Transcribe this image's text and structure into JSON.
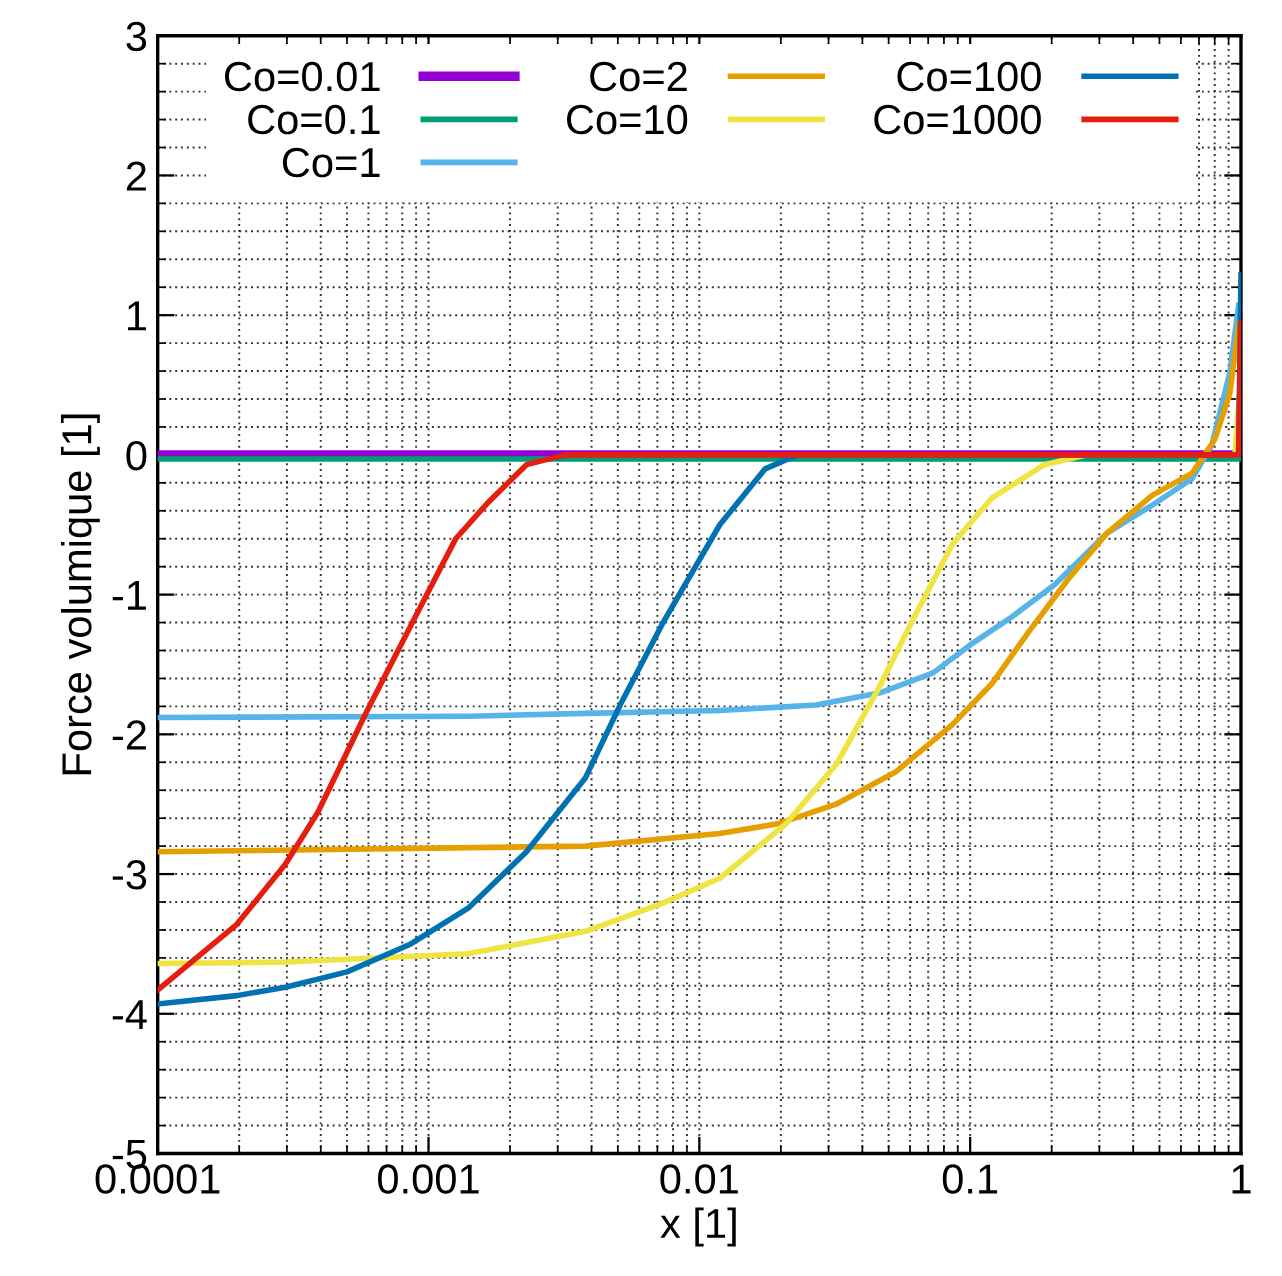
{
  "chart_data": {
    "type": "line",
    "xlabel": "x [1]",
    "ylabel": "Force volumique [1]",
    "log": "x",
    "xlim": [
      0.0001,
      1
    ],
    "ylim": [
      -5,
      3
    ],
    "xticks": [
      0.0001,
      0.001,
      0.01,
      0.1,
      1
    ],
    "yticks": [
      -5,
      -4,
      -3,
      -2,
      -1,
      0,
      1,
      2,
      3
    ],
    "grid": true,
    "legend": "top",
    "line_style": "solid",
    "marker": "none",
    "series": [
      {
        "name": "Co=0.01",
        "color": "#9400d3",
        "x": [
          0.0001,
          1
        ],
        "values": [
          0,
          0
        ]
      },
      {
        "name": "Co=0.1",
        "color": "#009e73",
        "x": [
          0.0001,
          1
        ],
        "values": [
          -0.03,
          -0.03
        ]
      },
      {
        "name": "Co=1",
        "color": "#56b4e9",
        "x": [
          0.0001,
          0.0014,
          0.0038,
          0.0119,
          0.027,
          0.047,
          0.073,
          0.1,
          0.14,
          0.205,
          0.32,
          0.47,
          0.66,
          0.78,
          0.91,
          0.98
        ],
        "values": [
          -1.88,
          -1.87,
          -1.85,
          -1.83,
          -1.79,
          -1.7,
          -1.56,
          -1.36,
          -1.17,
          -0.93,
          -0.56,
          -0.36,
          -0.17,
          0.07,
          0.59,
          1.07
        ]
      },
      {
        "name": "Co=2",
        "color": "#e69f00",
        "x": [
          0.0001,
          0.0038,
          0.0119,
          0.0195,
          0.032,
          0.053,
          0.086,
          0.12,
          0.164,
          0.23,
          0.32,
          0.47,
          0.66,
          0.8,
          0.91,
          0.98
        ],
        "values": [
          -2.84,
          -2.8,
          -2.71,
          -2.64,
          -2.5,
          -2.27,
          -1.93,
          -1.64,
          -1.27,
          -0.89,
          -0.56,
          -0.29,
          -0.13,
          0.11,
          0.44,
          0.93
        ]
      },
      {
        "name": "Co=10",
        "color": "#f0e442",
        "x": [
          0.0001,
          0.0003,
          0.0014,
          0.0038,
          0.0073,
          0.0119,
          0.0209,
          0.0322,
          0.0468,
          0.0618,
          0.086,
          0.12,
          0.188,
          0.27,
          0.95,
          1
        ],
        "values": [
          -3.64,
          -3.63,
          -3.57,
          -3.41,
          -3.21,
          -3.03,
          -2.64,
          -2.21,
          -1.64,
          -1.17,
          -0.64,
          -0.31,
          -0.07,
          0,
          0,
          0.6
        ]
      },
      {
        "name": "Co=100",
        "color": "#0072b2",
        "x": [
          0.0001,
          0.000196,
          0.000296,
          0.0005,
          0.00086,
          0.00141,
          0.0023,
          0.0038,
          0.0051,
          0.0073,
          0.0119,
          0.0175,
          0.023,
          0.98,
          1
        ],
        "values": [
          -3.93,
          -3.87,
          -3.81,
          -3.7,
          -3.5,
          -3.24,
          -2.84,
          -2.31,
          -1.79,
          -1.21,
          -0.5,
          -0.1,
          0,
          0,
          1.29
        ]
      },
      {
        "name": "Co=1000",
        "color": "#e51e10",
        "x": [
          0.0001,
          0.000196,
          0.000296,
          0.00039,
          0.00059,
          0.00091,
          0.00126,
          0.00166,
          0.0023,
          0.0032,
          0.98,
          1
        ],
        "values": [
          -3.83,
          -3.36,
          -2.93,
          -2.56,
          -1.84,
          -1.13,
          -0.6,
          -0.34,
          -0.07,
          0,
          0,
          0.95
        ]
      }
    ]
  }
}
